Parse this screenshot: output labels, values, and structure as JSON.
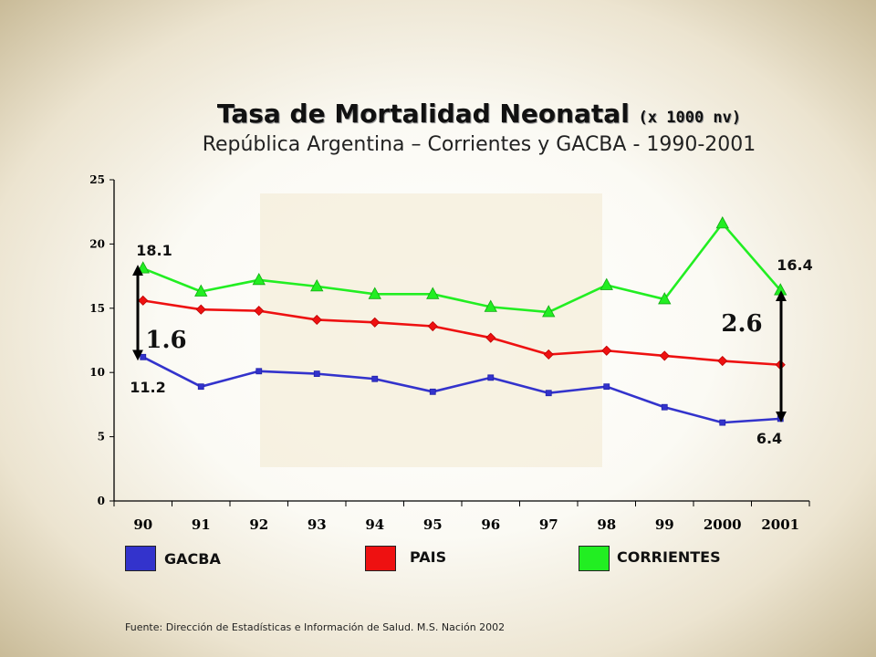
{
  "title": "Tasa de Mortalidad Neonatal",
  "title_unit": "(x 1000 nv)",
  "subtitle": "República Argentina – Corrientes y GACBA - 1990-2001",
  "source": "Fuente: Dirección de Estadísticas e Información de Salud. M.S. Nación 2002",
  "colors": {
    "GACBA": "#3333cc",
    "PAIS": "#ee1111",
    "CORRIENTES": "#22ee22",
    "plot_band": "#f5efdc"
  },
  "chart_data": {
    "type": "line",
    "categories": [
      "90",
      "91",
      "92",
      "93",
      "94",
      "95",
      "96",
      "97",
      "98",
      "99",
      "2000",
      "2001"
    ],
    "series": [
      {
        "name": "GACBA",
        "marker": "square",
        "values": [
          11.2,
          8.9,
          10.1,
          9.9,
          9.5,
          8.5,
          9.6,
          8.4,
          8.9,
          7.3,
          6.1,
          6.4
        ]
      },
      {
        "name": "PAIS",
        "marker": "diamond",
        "values": [
          15.6,
          14.9,
          14.8,
          14.1,
          13.9,
          13.6,
          12.7,
          11.4,
          11.7,
          11.3,
          10.9,
          10.6
        ]
      },
      {
        "name": "CORRIENTES",
        "marker": "triangle",
        "values": [
          18.1,
          16.3,
          17.2,
          16.7,
          16.1,
          16.1,
          15.1,
          14.7,
          16.8,
          15.7,
          21.6,
          16.4
        ]
      }
    ],
    "yticks": [
      "0",
      "5",
      "10",
      "15",
      "20",
      "25"
    ],
    "ylim": [
      0,
      25
    ],
    "legend_position": "bottom",
    "grid": false,
    "annotations": {
      "start_high": "18.1",
      "start_low": "11.2",
      "start_ratio": "1.6",
      "end_high": "16.4",
      "end_low": "6.4",
      "end_ratio": "2.6"
    }
  }
}
